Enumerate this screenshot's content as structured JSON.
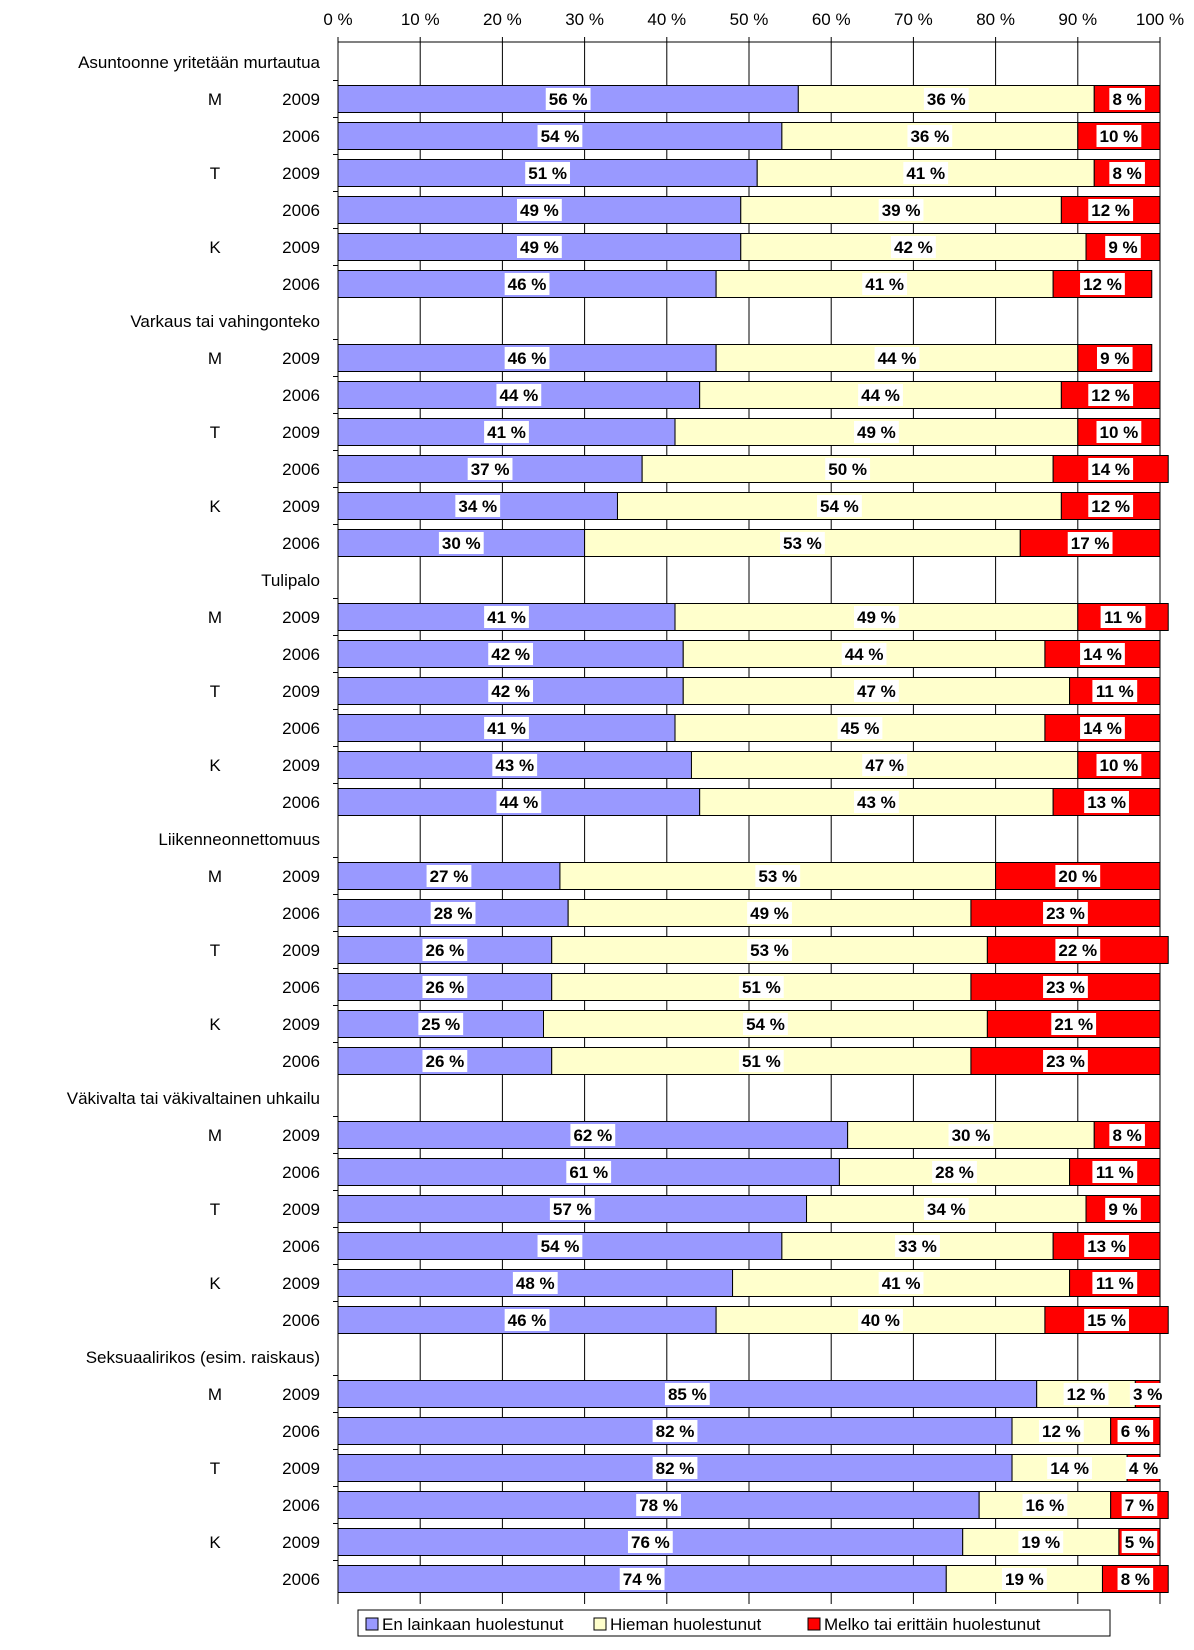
{
  "chart_data": {
    "type": "bar",
    "orientation": "horizontal",
    "stacked": true,
    "xlim": [
      0,
      100
    ],
    "x_ticks": [
      "0 %",
      "10 %",
      "20 %",
      "30 %",
      "40 %",
      "50 %",
      "60 %",
      "70 %",
      "80 %",
      "90 %",
      "100 %"
    ],
    "grid": true,
    "legend_position": "bottom",
    "colors": [
      "#9999ff",
      "#ffffcc",
      "#ff0000"
    ],
    "series": [
      {
        "name": "En lainkaan huolestunut"
      },
      {
        "name": "Hieman huolestunut"
      },
      {
        "name": "Melko tai erittäin huolestunut"
      }
    ],
    "groups": [
      {
        "title": "Asuntoonne yritetään murtautua",
        "rows": [
          {
            "cat": "M",
            "year": "2009",
            "values": [
              56,
              36,
              8
            ],
            "labels": [
              "56 %",
              "36 %",
              "8 %"
            ]
          },
          {
            "cat": "",
            "year": "2006",
            "values": [
              54,
              36,
              10
            ],
            "labels": [
              "54 %",
              "36 %",
              "10 %"
            ]
          },
          {
            "cat": "T",
            "year": "2009",
            "values": [
              51,
              41,
              8
            ],
            "labels": [
              "51 %",
              "41 %",
              "8 %"
            ]
          },
          {
            "cat": "",
            "year": "2006",
            "values": [
              49,
              39,
              12
            ],
            "labels": [
              "49 %",
              "39 %",
              "12 %"
            ]
          },
          {
            "cat": "K",
            "year": "2009",
            "values": [
              49,
              42,
              9
            ],
            "labels": [
              "49 %",
              "42 %",
              "9 %"
            ]
          },
          {
            "cat": "",
            "year": "2006",
            "values": [
              46,
              41,
              12
            ],
            "labels": [
              "46 %",
              "41 %",
              "12 %"
            ]
          }
        ]
      },
      {
        "title": "Varkaus tai vahingonteko",
        "rows": [
          {
            "cat": "M",
            "year": "2009",
            "values": [
              46,
              44,
              9
            ],
            "labels": [
              "46 %",
              "44 %",
              "9 %"
            ]
          },
          {
            "cat": "",
            "year": "2006",
            "values": [
              44,
              44,
              12
            ],
            "labels": [
              "44 %",
              "44 %",
              "12 %"
            ]
          },
          {
            "cat": "T",
            "year": "2009",
            "values": [
              41,
              49,
              10
            ],
            "labels": [
              "41 %",
              "49 %",
              "10 %"
            ]
          },
          {
            "cat": "",
            "year": "2006",
            "values": [
              37,
              50,
              14
            ],
            "labels": [
              "37 %",
              "50 %",
              "14 %"
            ]
          },
          {
            "cat": "K",
            "year": "2009",
            "values": [
              34,
              54,
              12
            ],
            "labels": [
              "34 %",
              "54 %",
              "12 %"
            ]
          },
          {
            "cat": "",
            "year": "2006",
            "values": [
              30,
              53,
              17
            ],
            "labels": [
              "30 %",
              "53 %",
              "17 %"
            ]
          }
        ]
      },
      {
        "title": "Tulipalo",
        "rows": [
          {
            "cat": "M",
            "year": "2009",
            "values": [
              41,
              49,
              11
            ],
            "labels": [
              "41 %",
              "49 %",
              "11 %"
            ]
          },
          {
            "cat": "",
            "year": "2006",
            "values": [
              42,
              44,
              14
            ],
            "labels": [
              "42 %",
              "44 %",
              "14 %"
            ]
          },
          {
            "cat": "T",
            "year": "2009",
            "values": [
              42,
              47,
              11
            ],
            "labels": [
              "42 %",
              "47 %",
              "11 %"
            ]
          },
          {
            "cat": "",
            "year": "2006",
            "values": [
              41,
              45,
              14
            ],
            "labels": [
              "41 %",
              "45 %",
              "14 %"
            ]
          },
          {
            "cat": "K",
            "year": "2009",
            "values": [
              43,
              47,
              10
            ],
            "labels": [
              "43 %",
              "47 %",
              "10 %"
            ]
          },
          {
            "cat": "",
            "year": "2006",
            "values": [
              44,
              43,
              13
            ],
            "labels": [
              "44 %",
              "43 %",
              "13 %"
            ]
          }
        ]
      },
      {
        "title": "Liikenneonnettomuus",
        "rows": [
          {
            "cat": "M",
            "year": "2009",
            "values": [
              27,
              53,
              20
            ],
            "labels": [
              "27 %",
              "53 %",
              "20 %"
            ]
          },
          {
            "cat": "",
            "year": "2006",
            "values": [
              28,
              49,
              23
            ],
            "labels": [
              "28 %",
              "49 %",
              "23 %"
            ]
          },
          {
            "cat": "T",
            "year": "2009",
            "values": [
              26,
              53,
              22
            ],
            "labels": [
              "26 %",
              "53 %",
              "22 %"
            ]
          },
          {
            "cat": "",
            "year": "2006",
            "values": [
              26,
              51,
              23
            ],
            "labels": [
              "26 %",
              "51 %",
              "23 %"
            ]
          },
          {
            "cat": "K",
            "year": "2009",
            "values": [
              25,
              54,
              21
            ],
            "labels": [
              "25 %",
              "54 %",
              "21 %"
            ]
          },
          {
            "cat": "",
            "year": "2006",
            "values": [
              26,
              51,
              23
            ],
            "labels": [
              "26 %",
              "51 %",
              "23 %"
            ]
          }
        ]
      },
      {
        "title": "Väkivalta tai väkivaltainen uhkailu",
        "rows": [
          {
            "cat": "M",
            "year": "2009",
            "values": [
              62,
              30,
              8
            ],
            "labels": [
              "62 %",
              "30 %",
              "8 %"
            ]
          },
          {
            "cat": "",
            "year": "2006",
            "values": [
              61,
              28,
              11
            ],
            "labels": [
              "61 %",
              "28 %",
              "11 %"
            ]
          },
          {
            "cat": "T",
            "year": "2009",
            "values": [
              57,
              34,
              9
            ],
            "labels": [
              "57 %",
              "34 %",
              "9 %"
            ]
          },
          {
            "cat": "",
            "year": "2006",
            "values": [
              54,
              33,
              13
            ],
            "labels": [
              "54 %",
              "33 %",
              "13 %"
            ]
          },
          {
            "cat": "K",
            "year": "2009",
            "values": [
              48,
              41,
              11
            ],
            "labels": [
              "48 %",
              "41 %",
              "11 %"
            ]
          },
          {
            "cat": "",
            "year": "2006",
            "values": [
              46,
              40,
              15
            ],
            "labels": [
              "46 %",
              "40 %",
              "15 %"
            ]
          }
        ]
      },
      {
        "title": "Seksuaalirikos (esim. raiskaus)",
        "rows": [
          {
            "cat": "M",
            "year": "2009",
            "values": [
              85,
              12,
              3
            ],
            "labels": [
              "85 %",
              "12 %",
              "3 %"
            ]
          },
          {
            "cat": "",
            "year": "2006",
            "values": [
              82,
              12,
              6
            ],
            "labels": [
              "82 %",
              "12 %",
              "6 %"
            ]
          },
          {
            "cat": "T",
            "year": "2009",
            "values": [
              82,
              14,
              4
            ],
            "labels": [
              "82 %",
              "14 %",
              "4 %"
            ]
          },
          {
            "cat": "",
            "year": "2006",
            "values": [
              78,
              16,
              7
            ],
            "labels": [
              "78 %",
              "16 %",
              "7 %"
            ]
          },
          {
            "cat": "K",
            "year": "2009",
            "values": [
              76,
              19,
              5
            ],
            "labels": [
              "76 %",
              "19 %",
              "5 %"
            ]
          },
          {
            "cat": "",
            "year": "2006",
            "values": [
              74,
              19,
              8
            ],
            "labels": [
              "74 %",
              "19 %",
              "8 %"
            ]
          }
        ]
      }
    ]
  }
}
